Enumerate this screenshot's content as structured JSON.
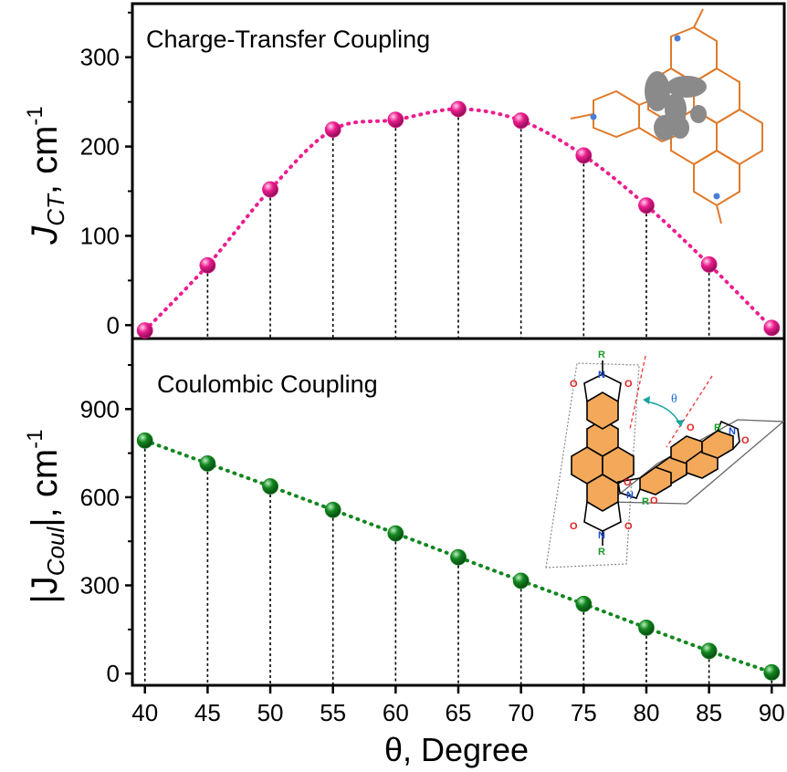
{
  "chart_data": [
    {
      "type": "scatter",
      "title": "Charge-Transfer Coupling",
      "ylabel_main": "J",
      "ylabel_sub": "CT",
      "ylabel_unit": ", cm",
      "ylabel_sup": "-1",
      "xlim": [
        39,
        91
      ],
      "ylim": [
        -15,
        360
      ],
      "yticks": [
        0,
        100,
        200,
        300
      ],
      "x": [
        40,
        45,
        50,
        55,
        60,
        65,
        70,
        75,
        80,
        85,
        90
      ],
      "y": [
        -6,
        67,
        152,
        219,
        230,
        242,
        229,
        190,
        134,
        68,
        -3
      ],
      "color": "#ec1d8f"
    },
    {
      "type": "scatter",
      "title": "Coulombic Coupling",
      "ylabel_main": "|J",
      "ylabel_sub": "Coul",
      "ylabel_unit": "|, cm",
      "ylabel_sup": "-1",
      "xlim": [
        39,
        91
      ],
      "ylim": [
        -40,
        1140
      ],
      "yticks": [
        0,
        300,
        600,
        900
      ],
      "x": [
        40,
        45,
        50,
        55,
        60,
        65,
        70,
        75,
        80,
        85,
        90
      ],
      "y": [
        793,
        715,
        637,
        557,
        477,
        396,
        316,
        237,
        156,
        77,
        4
      ],
      "color": "#12861f"
    }
  ],
  "x_axis": {
    "label": "θ, Degree",
    "ticks": [
      40,
      45,
      50,
      55,
      60,
      65,
      70,
      75,
      80,
      85,
      90
    ]
  },
  "inset": {
    "theta_label": "θ",
    "atom_o": "O",
    "atom_n": "N",
    "atom_r": "R"
  }
}
